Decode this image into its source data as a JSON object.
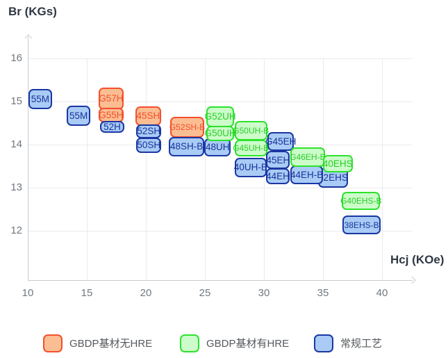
{
  "y_axis_title": "Br (KGs)",
  "x_axis_title": "Hcj (KOe)",
  "legend": {
    "items": [
      {
        "label": "GBDP基材无HRE",
        "series": "gbdp_no_hre"
      },
      {
        "label": "GBDP基材有HRE",
        "series": "gbdp_hre"
      },
      {
        "label": "常规工艺",
        "series": "conventional"
      }
    ]
  },
  "series_styles": {
    "gbdp_no_hre": {
      "fill": "#fbbd92",
      "border": "#f4502d",
      "text": "#f4502d"
    },
    "gbdp_hre": {
      "fill": "#ccfcc9",
      "border": "#2de22d",
      "text": "#29ce29"
    },
    "conventional": {
      "fill": "#a9cbf5",
      "border": "#1a37a3",
      "text": "#16349c"
    }
  },
  "chart_data": {
    "type": "scatter",
    "title": "",
    "xlabel": "Hcj (KOe)",
    "ylabel": "Br (KGs)",
    "x_ticks": [
      10,
      15,
      20,
      25,
      30,
      35,
      40
    ],
    "y_ticks": [
      16,
      15,
      14,
      13,
      12
    ],
    "xlim": [
      10,
      43
    ],
    "ylim": [
      10.8,
      16.5
    ],
    "grid": true,
    "legend_position": "bottom",
    "series_names": [
      "GBDP基材无HRE",
      "GBDP基材有HRE",
      "常规工艺"
    ],
    "boxes": [
      {
        "label": "55M",
        "series": "conventional",
        "hcj": [
          10.05,
          12.05
        ],
        "br": [
          14.82,
          15.29
        ]
      },
      {
        "label": "55M",
        "series": "conventional",
        "hcj": [
          13.3,
          15.3
        ],
        "br": [
          14.44,
          14.9
        ]
      },
      {
        "label": "G57H",
        "series": "gbdp_no_hre",
        "hcj": [
          16.0,
          18.1
        ],
        "br": [
          14.81,
          15.32
        ]
      },
      {
        "label": "G55H",
        "series": "gbdp_no_hre",
        "hcj": [
          16.0,
          18.1
        ],
        "br": [
          14.52,
          14.85
        ]
      },
      {
        "label": "52H",
        "series": "conventional",
        "hcj": [
          16.1,
          18.2
        ],
        "br": [
          14.27,
          14.55
        ]
      },
      {
        "label": "45SH",
        "series": "gbdp_no_hre",
        "hcj": [
          19.1,
          21.3
        ],
        "br": [
          14.44,
          14.89
        ]
      },
      {
        "label": "52SH",
        "series": "conventional",
        "hcj": [
          19.2,
          21.3
        ],
        "br": [
          14.15,
          14.46
        ]
      },
      {
        "label": "50SH",
        "series": "conventional",
        "hcj": [
          19.2,
          21.3
        ],
        "br": [
          13.8,
          14.16
        ]
      },
      {
        "label": "G52SH-B",
        "series": "gbdp_no_hre",
        "hcj": [
          22.05,
          24.95
        ],
        "br": [
          14.16,
          14.65
        ]
      },
      {
        "label": "48SH-B",
        "series": "conventional",
        "hcj": [
          21.95,
          24.95
        ],
        "br": [
          13.73,
          14.18
        ]
      },
      {
        "label": "48UH",
        "series": "conventional",
        "hcj": [
          24.95,
          27.2
        ],
        "br": [
          13.73,
          14.15
        ]
      },
      {
        "label": "G52UH",
        "series": "gbdp_hre",
        "hcj": [
          25.1,
          27.5
        ],
        "br": [
          14.4,
          14.89
        ]
      },
      {
        "label": "G50UH",
        "series": "gbdp_hre",
        "hcj": [
          25.1,
          27.5
        ],
        "br": [
          14.08,
          14.44
        ]
      },
      {
        "label": "G50UH-B",
        "series": "gbdp_hre",
        "hcj": [
          27.5,
          30.3
        ],
        "br": [
          14.1,
          14.55
        ]
      },
      {
        "label": "G45UH-B",
        "series": "gbdp_hre",
        "hcj": [
          27.5,
          30.3
        ],
        "br": [
          13.73,
          14.12
        ]
      },
      {
        "label": "40UH-B",
        "series": "conventional",
        "hcj": [
          27.5,
          30.25
        ],
        "br": [
          13.24,
          13.69
        ]
      },
      {
        "label": "G45EH",
        "series": "conventional",
        "hcj": [
          30.3,
          32.55
        ],
        "br": [
          13.85,
          14.29
        ]
      },
      {
        "label": "45EH",
        "series": "conventional",
        "hcj": [
          30.2,
          32.2
        ],
        "br": [
          13.43,
          13.85
        ]
      },
      {
        "label": "44EH",
        "series": "conventional",
        "hcj": [
          30.15,
          32.2
        ],
        "br": [
          13.08,
          13.45
        ]
      },
      {
        "label": "42EHS",
        "series": "conventional",
        "hcj": [
          34.6,
          37.1
        ],
        "br": [
          13.0,
          13.45
        ]
      },
      {
        "label": "44EH-B",
        "series": "conventional",
        "hcj": [
          32.25,
          35.0
        ],
        "br": [
          13.08,
          13.52
        ]
      },
      {
        "label": "G46EH-B",
        "series": "gbdp_hre",
        "hcj": [
          32.25,
          35.15
        ],
        "br": [
          13.48,
          13.94
        ]
      },
      {
        "label": "40EHS",
        "series": "gbdp_hre",
        "hcj": [
          35.0,
          37.5
        ],
        "br": [
          13.35,
          13.76
        ]
      },
      {
        "label": "G40EHS-B",
        "series": "gbdp_hre",
        "hcj": [
          36.6,
          39.85
        ],
        "br": [
          12.48,
          12.9
        ]
      },
      {
        "label": "38EHS-B",
        "series": "conventional",
        "hcj": [
          36.65,
          39.9
        ],
        "br": [
          11.92,
          12.35
        ]
      }
    ]
  }
}
